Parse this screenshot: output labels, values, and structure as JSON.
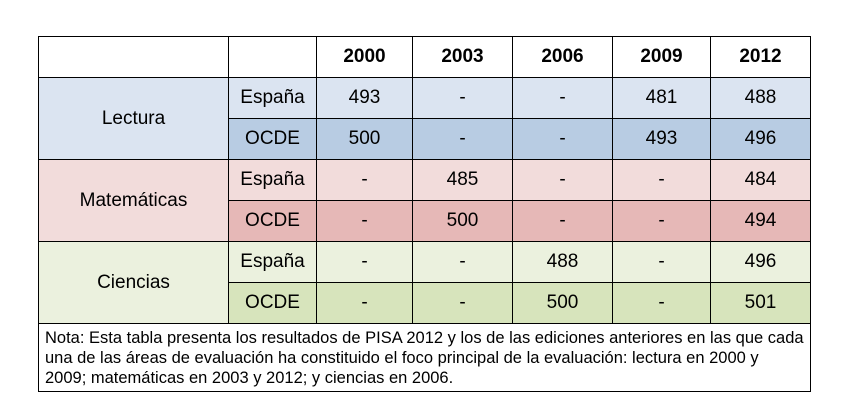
{
  "chart_data": {
    "type": "table",
    "columns": [
      "2000",
      "2003",
      "2006",
      "2009",
      "2012"
    ],
    "areas": [
      {
        "name": "Lectura",
        "rows": [
          {
            "country": "España",
            "values": [
              "493",
              "-",
              "-",
              "481",
              "488"
            ]
          },
          {
            "country": "OCDE",
            "values": [
              "500",
              "-",
              "-",
              "493",
              "496"
            ]
          }
        ]
      },
      {
        "name": "Matemáticas",
        "rows": [
          {
            "country": "España",
            "values": [
              "-",
              "485",
              "-",
              "-",
              "484"
            ]
          },
          {
            "country": "OCDE",
            "values": [
              "-",
              "500",
              "-",
              "-",
              "494"
            ]
          }
        ]
      },
      {
        "name": "Ciencias",
        "rows": [
          {
            "country": "España",
            "values": [
              "-",
              "-",
              "488",
              "-",
              "496"
            ]
          },
          {
            "country": "OCDE",
            "values": [
              "-",
              "-",
              "500",
              "-",
              "501"
            ]
          }
        ]
      }
    ],
    "note": "Nota: Esta tabla presenta los resultados de PISA 2012 y los de las ediciones anteriores en las que cada una de las áreas de evaluación ha constituido el foco principal de la evaluación: lectura en 2000 y 2009; matemáticas en 2003 y 2012; y ciencias en 2006."
  },
  "colors": {
    "lectura_light": "#dbe4f1",
    "lectura_dark": "#b8cce3",
    "matematicas_light": "#f2dcdb",
    "matematicas_dark": "#e6b8b7",
    "ciencias_light": "#ebf1de",
    "ciencias_dark": "#d7e4bc"
  }
}
